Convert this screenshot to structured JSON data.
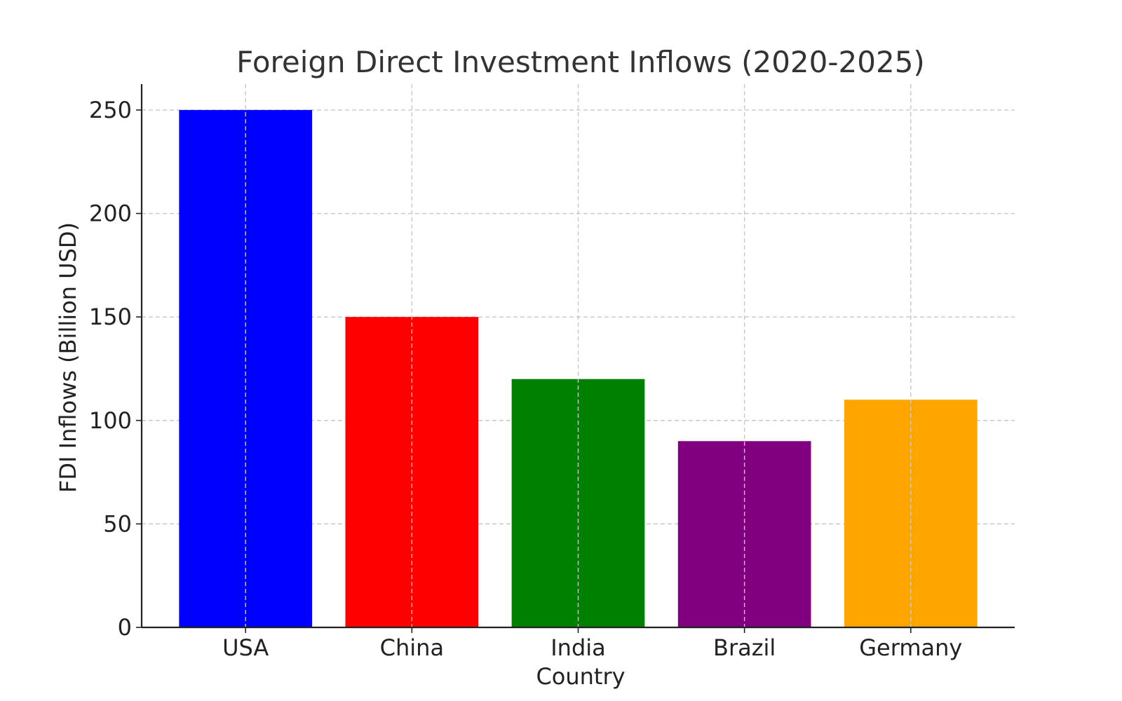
{
  "chart_data": {
    "type": "bar",
    "title": "Foreign Direct Investment Inflows (2020-2025)",
    "xlabel": "Country",
    "ylabel": "FDI Inflows (Billion USD)",
    "categories": [
      "USA",
      "China",
      "India",
      "Brazil",
      "Germany"
    ],
    "values": [
      250,
      150,
      120,
      90,
      110
    ],
    "colors": [
      "#0000ff",
      "#ff0000",
      "#008000",
      "#800080",
      "#ffa500"
    ],
    "ylim": [
      0,
      262.5
    ],
    "yticks": [
      0,
      50,
      100,
      150,
      200,
      250
    ],
    "grid": true,
    "grid_style": "dashed",
    "legend": "none"
  }
}
